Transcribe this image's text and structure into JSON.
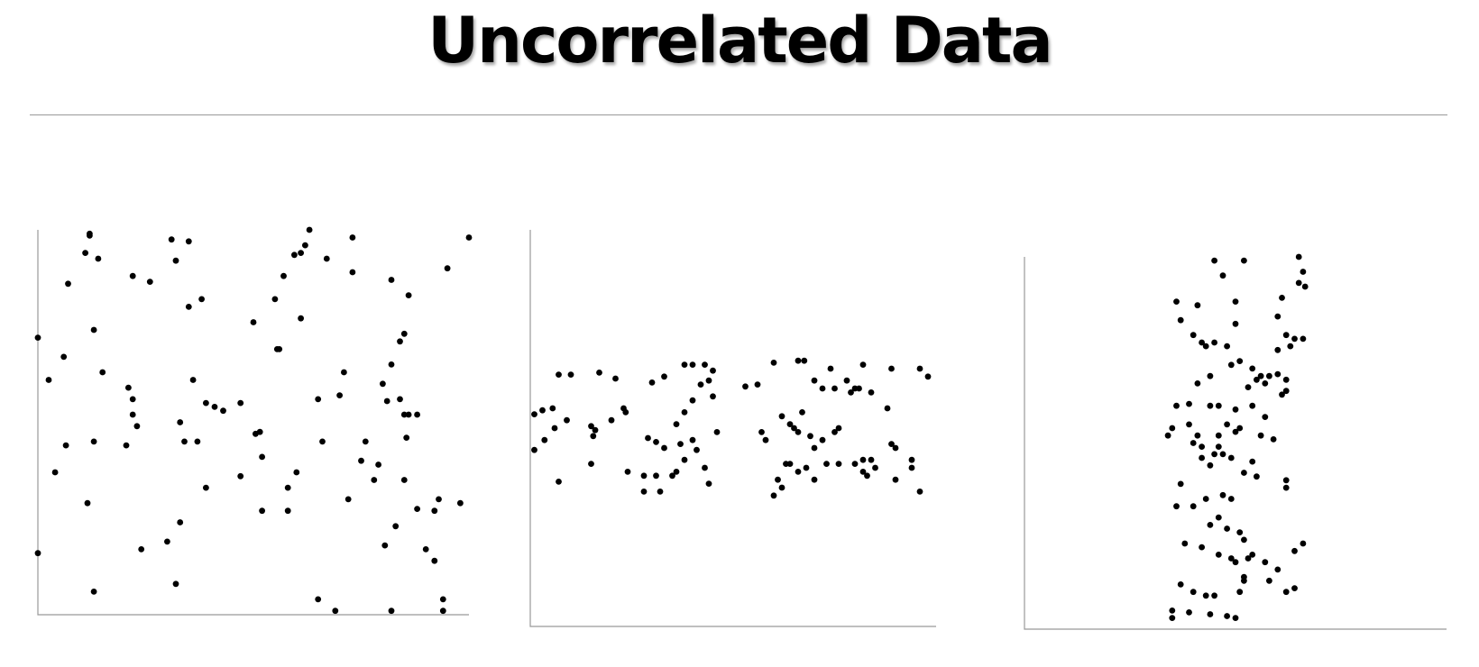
{
  "slide": {
    "title": "Uncorrelated Data"
  },
  "colors": {
    "points": "#000000",
    "axes": "#999999",
    "rule": "#999999"
  },
  "chart_data": [
    {
      "type": "scatter",
      "title": "",
      "xlabel": "",
      "ylabel": "",
      "xlim": [
        0,
        100
      ],
      "ylim": [
        0,
        100
      ],
      "grid": false,
      "points": [
        [
          12,
          99
        ],
        [
          12,
          98.5
        ],
        [
          11,
          94
        ],
        [
          14,
          92.5
        ],
        [
          31,
          97.5
        ],
        [
          35,
          97
        ],
        [
          63,
          100
        ],
        [
          62,
          96
        ],
        [
          61,
          94
        ],
        [
          59.5,
          93.5
        ],
        [
          67,
          92.5
        ],
        [
          73,
          98
        ],
        [
          95,
          90
        ],
        [
          100,
          98
        ],
        [
          22,
          88
        ],
        [
          26,
          86.5
        ],
        [
          32,
          92
        ],
        [
          7,
          86
        ],
        [
          57,
          88
        ],
        [
          73,
          89
        ],
        [
          82,
          87
        ],
        [
          86,
          83
        ],
        [
          35,
          80
        ],
        [
          38,
          82
        ],
        [
          50,
          76
        ],
        [
          55,
          82
        ],
        [
          61,
          77
        ],
        [
          0,
          72
        ],
        [
          13,
          74
        ],
        [
          85,
          73
        ],
        [
          84,
          71
        ],
        [
          56,
          69
        ],
        [
          55.5,
          69
        ],
        [
          6,
          67
        ],
        [
          82,
          65
        ],
        [
          15,
          63
        ],
        [
          2.5,
          61
        ],
        [
          36,
          61
        ],
        [
          71,
          63
        ],
        [
          21,
          59
        ],
        [
          22,
          56
        ],
        [
          39,
          55
        ],
        [
          41,
          54
        ],
        [
          43,
          53
        ],
        [
          47,
          55
        ],
        [
          80,
          60
        ],
        [
          65,
          56
        ],
        [
          70,
          57
        ],
        [
          81,
          55.5
        ],
        [
          84,
          56
        ],
        [
          85,
          52
        ],
        [
          86,
          52
        ],
        [
          88,
          52
        ],
        [
          22,
          52
        ],
        [
          23,
          49
        ],
        [
          20.5,
          44
        ],
        [
          50.5,
          47
        ],
        [
          51.5,
          47.5
        ],
        [
          33,
          50
        ],
        [
          34,
          45
        ],
        [
          37,
          45
        ],
        [
          76,
          45
        ],
        [
          6.5,
          44
        ],
        [
          85.5,
          46
        ],
        [
          66,
          45
        ],
        [
          52,
          41
        ],
        [
          4,
          37
        ],
        [
          13,
          45
        ],
        [
          75,
          40
        ],
        [
          60,
          37
        ],
        [
          58,
          33
        ],
        [
          47,
          36
        ],
        [
          52,
          27
        ],
        [
          58,
          27
        ],
        [
          39,
          33
        ],
        [
          33,
          24
        ],
        [
          30,
          19
        ],
        [
          79,
          39
        ],
        [
          78,
          35
        ],
        [
          72,
          30
        ],
        [
          88,
          27.5
        ],
        [
          85,
          35
        ],
        [
          98,
          29
        ],
        [
          93,
          30
        ],
        [
          92,
          27
        ],
        [
          80.5,
          18
        ],
        [
          83,
          23
        ],
        [
          90,
          17
        ],
        [
          92,
          14
        ],
        [
          0,
          16
        ],
        [
          24,
          17
        ],
        [
          11.5,
          29
        ],
        [
          13,
          6
        ],
        [
          32,
          8
        ],
        [
          94,
          4
        ],
        [
          94,
          1
        ],
        [
          82,
          1
        ],
        [
          65,
          4
        ],
        [
          69,
          1
        ]
      ]
    },
    {
      "type": "scatter",
      "title": "",
      "xlabel": "",
      "ylabel": "",
      "xlim": [
        0,
        100
      ],
      "ylim": [
        0,
        100
      ],
      "grid": false,
      "points": [
        [
          1,
          53.5
        ],
        [
          3,
          54.5
        ],
        [
          5.5,
          55
        ],
        [
          3.5,
          47
        ],
        [
          1,
          44.5
        ],
        [
          6,
          50
        ],
        [
          9,
          52
        ],
        [
          7,
          36.5
        ],
        [
          7,
          63.5
        ],
        [
          10,
          63.5
        ],
        [
          17,
          64
        ],
        [
          21,
          62.5
        ],
        [
          15,
          50.5
        ],
        [
          15.5,
          48
        ],
        [
          16,
          49.5
        ],
        [
          20,
          52
        ],
        [
          23,
          55
        ],
        [
          23.5,
          54
        ],
        [
          15,
          41
        ],
        [
          24,
          39
        ],
        [
          28,
          38
        ],
        [
          28,
          34
        ],
        [
          31,
          38
        ],
        [
          31,
          46.5
        ],
        [
          33,
          45
        ],
        [
          29,
          47.5
        ],
        [
          35,
          38
        ],
        [
          36,
          39
        ],
        [
          32,
          34
        ],
        [
          38,
          42
        ],
        [
          37,
          46
        ],
        [
          41,
          44.5
        ],
        [
          43,
          40
        ],
        [
          44,
          36
        ],
        [
          40,
          47
        ],
        [
          36,
          51
        ],
        [
          40,
          57
        ],
        [
          38,
          54
        ],
        [
          30,
          61.5
        ],
        [
          33,
          63
        ],
        [
          38,
          66
        ],
        [
          40,
          66
        ],
        [
          43,
          66
        ],
        [
          44,
          62
        ],
        [
          45,
          58
        ],
        [
          42,
          61
        ],
        [
          45,
          64.5
        ],
        [
          46,
          49
        ],
        [
          53,
          60.5
        ],
        [
          56,
          61
        ],
        [
          60,
          66.5
        ],
        [
          66,
          67
        ],
        [
          67.5,
          67
        ],
        [
          57,
          49
        ],
        [
          58,
          47
        ],
        [
          62,
          53
        ],
        [
          64,
          51
        ],
        [
          65,
          50
        ],
        [
          66,
          49
        ],
        [
          67,
          54
        ],
        [
          69,
          48
        ],
        [
          70,
          45
        ],
        [
          72,
          47
        ],
        [
          75,
          49
        ],
        [
          76,
          50
        ],
        [
          70,
          62
        ],
        [
          72,
          60
        ],
        [
          75,
          60
        ],
        [
          78,
          62
        ],
        [
          80,
          60
        ],
        [
          84,
          59
        ],
        [
          89,
          65
        ],
        [
          88,
          55
        ],
        [
          81,
          60
        ],
        [
          79,
          59
        ],
        [
          74,
          65
        ],
        [
          82,
          66
        ],
        [
          63,
          41
        ],
        [
          62,
          35
        ],
        [
          64,
          41
        ],
        [
          61,
          37
        ],
        [
          66,
          39
        ],
        [
          68,
          40
        ],
        [
          70,
          37
        ],
        [
          73,
          41
        ],
        [
          76,
          41
        ],
        [
          80,
          41
        ],
        [
          82,
          39
        ],
        [
          83,
          38
        ],
        [
          82,
          42
        ],
        [
          84,
          42
        ],
        [
          85,
          40
        ],
        [
          90,
          37
        ],
        [
          94,
          42
        ],
        [
          94,
          40
        ],
        [
          96,
          34
        ],
        [
          90,
          45
        ],
        [
          89,
          46
        ],
        [
          98,
          63
        ],
        [
          96,
          65
        ],
        [
          60,
          33
        ]
      ]
    },
    {
      "type": "scatter",
      "title": "",
      "xlabel": "",
      "ylabel": "",
      "xlim": [
        0,
        100
      ],
      "ylim": [
        0,
        100
      ],
      "grid": false,
      "points": [
        [
          45,
          99
        ],
        [
          52,
          99
        ],
        [
          65,
          100
        ],
        [
          47,
          95
        ],
        [
          66,
          96
        ],
        [
          66.5,
          92
        ],
        [
          65,
          93
        ],
        [
          36,
          88
        ],
        [
          41,
          87
        ],
        [
          50,
          88
        ],
        [
          61,
          89
        ],
        [
          37,
          83
        ],
        [
          40,
          79
        ],
        [
          42,
          77
        ],
        [
          43,
          76
        ],
        [
          45,
          77
        ],
        [
          48,
          76
        ],
        [
          50,
          82
        ],
        [
          60,
          84
        ],
        [
          62,
          79
        ],
        [
          64,
          78
        ],
        [
          60,
          75
        ],
        [
          63,
          76
        ],
        [
          66,
          78
        ],
        [
          49,
          71
        ],
        [
          51,
          72
        ],
        [
          54,
          70
        ],
        [
          56,
          68
        ],
        [
          58,
          68
        ],
        [
          60,
          68.5
        ],
        [
          62,
          67
        ],
        [
          44,
          68
        ],
        [
          41,
          66
        ],
        [
          53,
          65
        ],
        [
          55,
          67
        ],
        [
          57,
          66
        ],
        [
          61,
          63
        ],
        [
          62,
          64
        ],
        [
          36,
          60
        ],
        [
          39,
          60.5
        ],
        [
          44,
          60
        ],
        [
          46,
          60
        ],
        [
          50,
          59
        ],
        [
          54,
          60
        ],
        [
          57,
          57
        ],
        [
          34,
          52
        ],
        [
          35,
          54
        ],
        [
          39,
          55
        ],
        [
          41,
          52
        ],
        [
          46,
          52
        ],
        [
          48,
          55
        ],
        [
          50,
          53
        ],
        [
          51,
          54
        ],
        [
          56,
          52
        ],
        [
          59,
          51
        ],
        [
          40,
          50
        ],
        [
          42,
          49
        ],
        [
          45,
          47
        ],
        [
          46,
          49
        ],
        [
          42,
          46
        ],
        [
          44,
          44
        ],
        [
          47,
          47
        ],
        [
          49,
          46
        ],
        [
          52,
          42
        ],
        [
          54,
          45
        ],
        [
          55,
          41
        ],
        [
          37,
          39
        ],
        [
          36,
          33
        ],
        [
          40,
          33
        ],
        [
          43,
          35
        ],
        [
          47,
          36
        ],
        [
          49,
          35
        ],
        [
          46,
          30
        ],
        [
          44,
          28
        ],
        [
          48,
          27
        ],
        [
          51,
          26
        ],
        [
          52,
          24
        ],
        [
          38,
          23
        ],
        [
          42,
          22
        ],
        [
          46,
          20
        ],
        [
          49,
          19
        ],
        [
          50,
          18
        ],
        [
          53,
          19
        ],
        [
          54,
          20
        ],
        [
          57,
          18
        ],
        [
          58,
          13
        ],
        [
          60,
          16
        ],
        [
          62,
          10
        ],
        [
          64,
          11
        ],
        [
          66,
          23
        ],
        [
          37,
          12
        ],
        [
          40,
          10
        ],
        [
          43,
          9
        ],
        [
          45,
          9
        ],
        [
          51,
          10
        ],
        [
          52,
          13
        ],
        [
          35,
          5
        ],
        [
          35,
          3
        ],
        [
          39,
          4.5
        ],
        [
          44,
          4
        ],
        [
          48,
          3.5
        ],
        [
          50,
          3
        ],
        [
          62,
          40
        ],
        [
          62,
          38
        ],
        [
          64,
          21
        ],
        [
          52,
          14
        ]
      ]
    }
  ]
}
